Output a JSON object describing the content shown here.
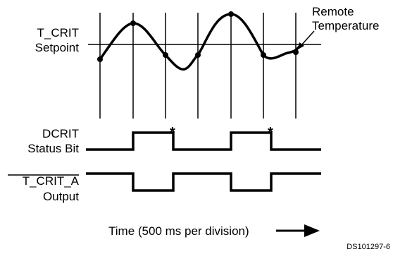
{
  "labels": {
    "t_crit_line1": "T_CRIT",
    "t_crit_line2": "Setpoint",
    "remote_line1": "Remote",
    "remote_line2": "Temperature",
    "dcrit_line1": "DCRIT",
    "dcrit_line2": "Status Bit",
    "tcrit_a_line1": "T_CRIT_A",
    "tcrit_a_line2": "Output",
    "time_axis": "Time (500 ms per division)",
    "star": "*",
    "figure_id": "DS101297-6"
  }
}
